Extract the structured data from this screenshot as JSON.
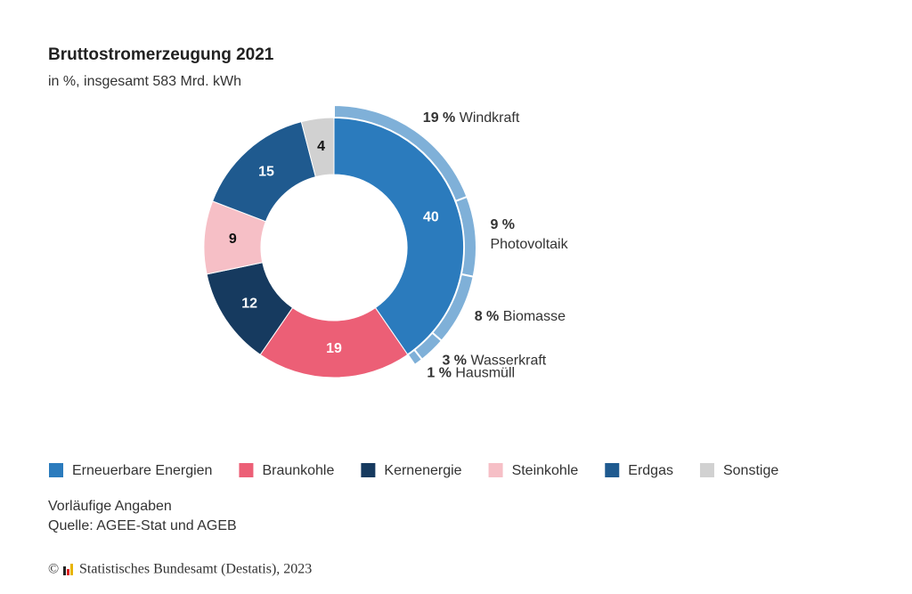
{
  "chart_data": {
    "type": "donut",
    "title": "Bruttostromerzeugung 2021",
    "subtitle": "in %, insgesamt 583 Mrd. kWh",
    "categories": [
      "Erneuerbare Energien",
      "Braunkohle",
      "Kernenergie",
      "Steinkohle",
      "Erdgas",
      "Sonstige"
    ],
    "values": [
      40,
      19,
      12,
      9,
      15,
      4
    ],
    "colors": [
      "#2b7bbd",
      "#ec5f76",
      "#163a5f",
      "#f6bfc6",
      "#1f5a8f",
      "#d1d1d1"
    ],
    "breakdown": {
      "categories": [
        "Windkraft",
        "Photovoltaik",
        "Biomasse",
        "Wasserkraft",
        "Hausmüll"
      ],
      "values": [
        19,
        9,
        8,
        3,
        1
      ],
      "value_labels": [
        "19 %",
        "9 %",
        "8 %",
        "3 %",
        "1 %"
      ],
      "color": "#7fb0d8"
    },
    "notes": [
      "Vorläufige Angaben",
      "Quelle: AGEE-Stat und AGEB"
    ],
    "copyright": "Statistisches Bundesamt (Destatis), 2023"
  }
}
